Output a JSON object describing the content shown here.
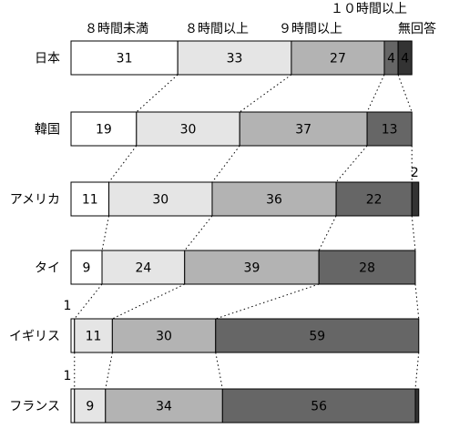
{
  "chart_data": {
    "type": "bar",
    "stacked": true,
    "percent_scale": true,
    "legend_position": "top",
    "series": [
      {
        "name": "８時間未満",
        "color": "#ffffff"
      },
      {
        "name": "８時間以上",
        "color": "#e5e5e5"
      },
      {
        "name": "９時間以上",
        "color": "#b3b3b3"
      },
      {
        "name": "１０時間以上",
        "color": "#666666"
      },
      {
        "name": "無回答",
        "color": "#333333"
      }
    ],
    "categories": [
      "日本",
      "韓国",
      "アメリカ",
      "タイ",
      "イギリス",
      "フランス"
    ],
    "values": [
      [
        31,
        33,
        27,
        4,
        4
      ],
      [
        19,
        30,
        37,
        13,
        0
      ],
      [
        11,
        30,
        36,
        22,
        2
      ],
      [
        9,
        24,
        39,
        28,
        0
      ],
      [
        1,
        11,
        30,
        59,
        0
      ],
      [
        1,
        9,
        34,
        56,
        1
      ]
    ],
    "labels": [
      [
        "31",
        "33",
        "27",
        "4",
        "4"
      ],
      [
        "19",
        "30",
        "37",
        "13",
        ""
      ],
      [
        "11",
        "30",
        "36",
        "22",
        "2"
      ],
      [
        "9",
        "24",
        "39",
        "28",
        ""
      ],
      [
        "1",
        "11",
        "30",
        "59",
        ""
      ],
      [
        "1",
        "9",
        "34",
        "56",
        ""
      ]
    ]
  }
}
